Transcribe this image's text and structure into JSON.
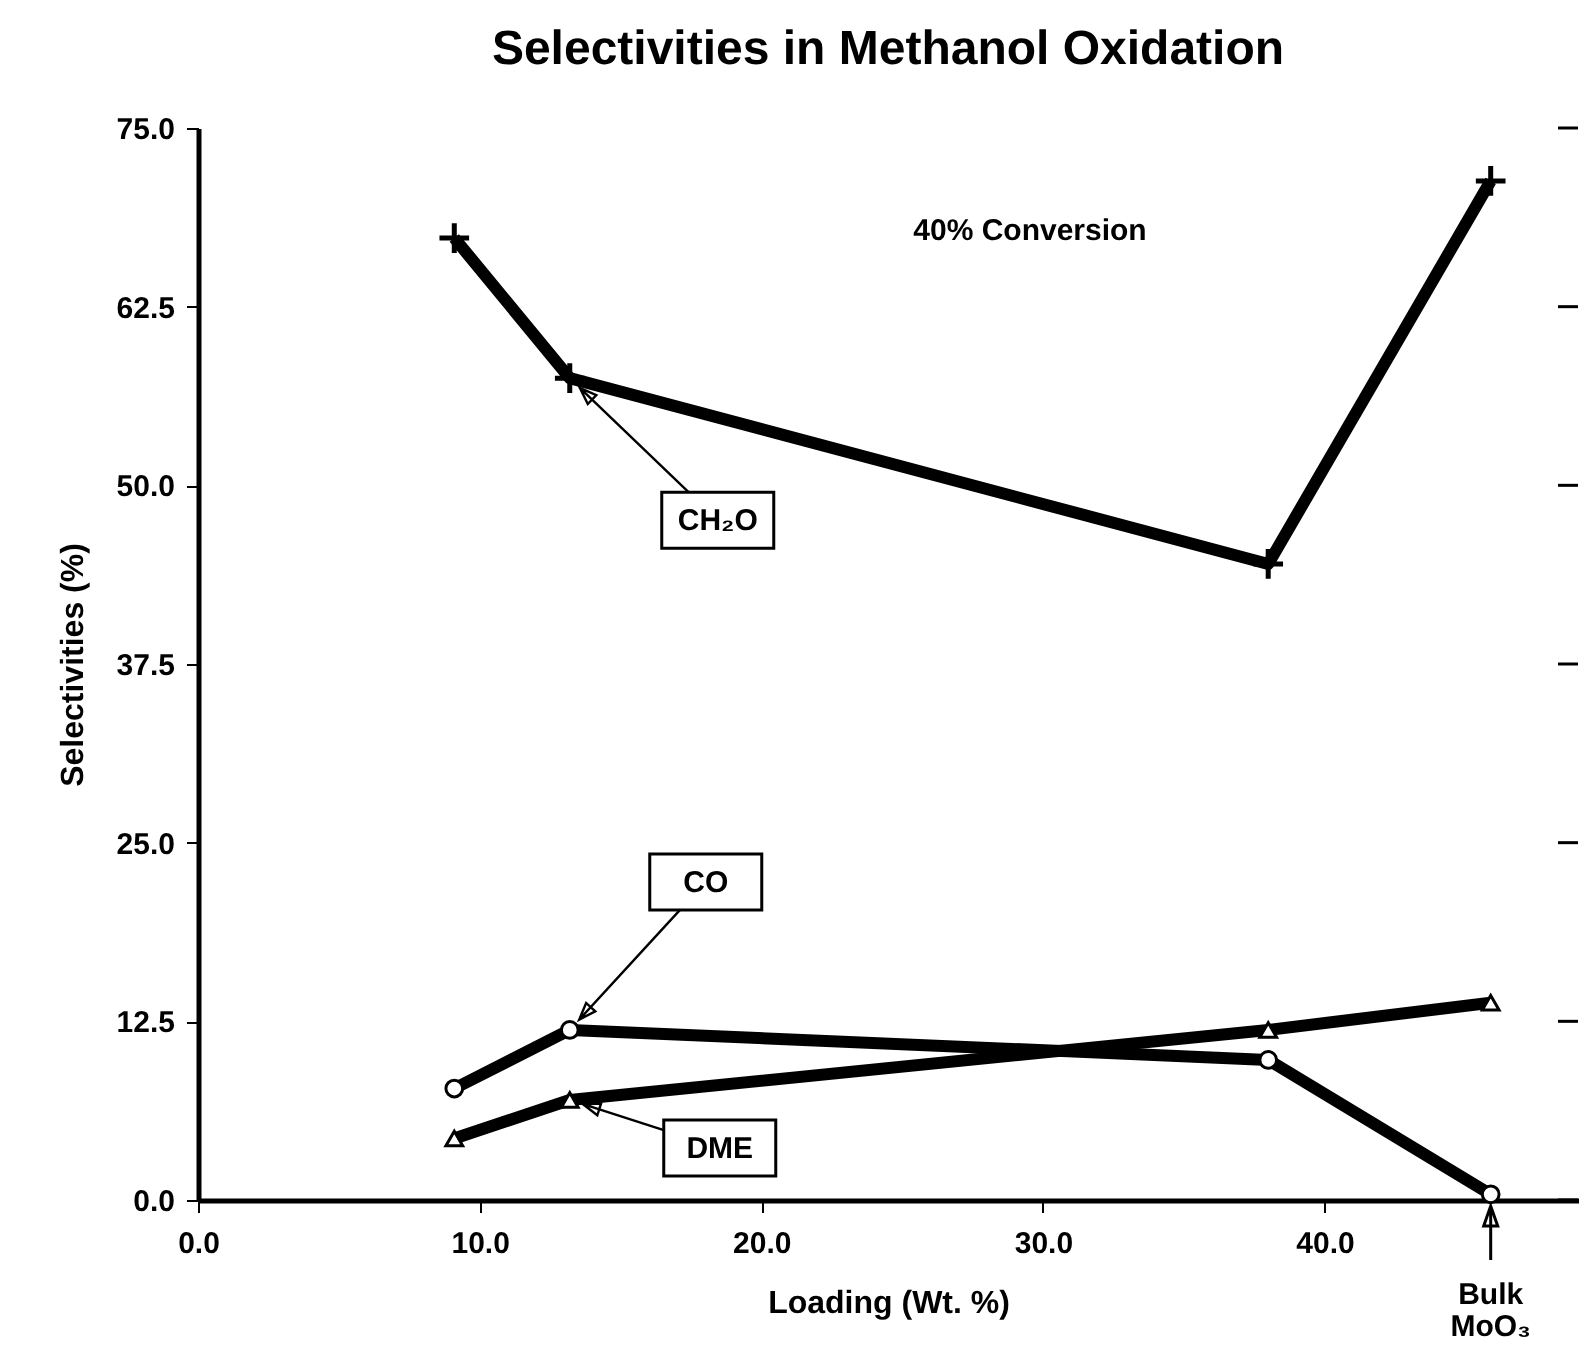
{
  "chart_data": {
    "type": "line",
    "title": "Selectivities in Methanol Oxidation",
    "xlabel": "Loading (Wt. %)",
    "ylabel": "Selectivities (%)",
    "x": [
      9.1,
      13.2,
      38.0,
      45.9
    ],
    "xlim": [
      0,
      49
    ],
    "xticks": [
      {
        "value": 0,
        "label": "0.0"
      },
      {
        "value": 10,
        "label": "10.0"
      },
      {
        "value": 20,
        "label": "20.0"
      },
      {
        "value": 30,
        "label": "30.0"
      },
      {
        "value": 40,
        "label": "40.0"
      }
    ],
    "ylim": [
      0,
      75
    ],
    "yticks": [
      {
        "value": 0,
        "label": "0.0"
      },
      12.5,
      {
        "value": 25,
        "label": "25.0"
      },
      37.5,
      {
        "value": 50,
        "label": "50.0"
      },
      62.5,
      {
        "value": 75,
        "label": "75.0"
      }
    ],
    "series": [
      {
        "name": "CH₂O",
        "color": "#000000",
        "marker": "cross",
        "values": [
          67.3,
          57.5,
          44.5,
          71.3
        ]
      },
      {
        "name": "CO",
        "color": "#000000",
        "marker": "circle",
        "values": [
          7.8,
          11.9,
          9.8,
          0.4
        ]
      },
      {
        "name": "DME",
        "color": "#000000",
        "marker": "triangle",
        "values": [
          4.3,
          7.0,
          11.9,
          13.8
        ]
      }
    ],
    "annotations": [
      "40% Conversion",
      {
        "text": "Bulk MoO₃",
        "x": 45.9,
        "y": 0
      }
    ],
    "grid": false,
    "legend": false,
    "line_style": "solid"
  }
}
